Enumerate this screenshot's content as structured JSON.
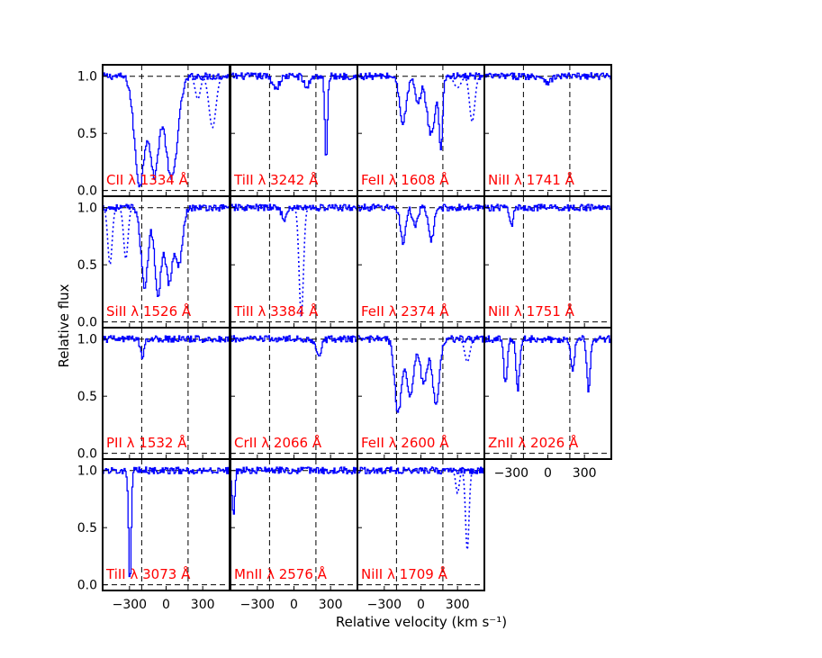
{
  "figure": {
    "ylabel": "Relative flux",
    "xlabel": "Relative velocity (km s⁻¹)"
  },
  "colors": {
    "spectrum": "#0000ff",
    "label": "#ff0000",
    "reference": "#000000"
  },
  "chart_data": {
    "type": "line",
    "xlabel": "Relative velocity (km s⁻¹)",
    "ylabel": "Relative flux",
    "xlim": [
      -520,
      520
    ],
    "ylim": [
      -0.05,
      1.1
    ],
    "xticks": [
      -300,
      0,
      300
    ],
    "yticks": [
      0.0,
      0.5,
      1.0
    ],
    "ytick_labels": [
      "0.0",
      "0.5",
      "1.0"
    ],
    "window": [
      -200,
      180
    ],
    "panels": [
      {
        "label": "CII λ 1334 Å",
        "row": 0,
        "col": 0,
        "min": 0.0,
        "features": [
          [
            -220,
            0.05,
            60
          ],
          [
            -100,
            0.15,
            50
          ],
          [
            40,
            0.1,
            70
          ]
        ],
        "blend": [
          [
            380,
            0.55,
            40
          ],
          [
            260,
            0.8,
            30
          ]
        ]
      },
      {
        "label": "TiII λ 3242 Å",
        "row": 0,
        "col": 1,
        "min": 0.0,
        "features": [
          [
            -150,
            0.9,
            40
          ],
          [
            260,
            0.25,
            15
          ],
          [
            100,
            0.9,
            30
          ]
        ],
        "blend": []
      },
      {
        "label": "FeII λ 1608 Å",
        "row": 0,
        "col": 2,
        "min": 0.0,
        "features": [
          [
            -150,
            0.6,
            40
          ],
          [
            -30,
            0.75,
            30
          ],
          [
            80,
            0.5,
            50
          ],
          [
            160,
            0.4,
            20
          ]
        ],
        "blend": [
          [
            300,
            0.9,
            40
          ],
          [
            420,
            0.6,
            30
          ]
        ]
      },
      {
        "label": "NiII λ 1741 Å",
        "row": 0,
        "col": 3,
        "min": 0.0,
        "features": [
          [
            0,
            0.95,
            40
          ]
        ],
        "blend": []
      },
      {
        "label": "SiII λ 1526 Å",
        "row": 1,
        "col": 0,
        "min": 0.0,
        "features": [
          [
            -180,
            0.3,
            40
          ],
          [
            -70,
            0.25,
            40
          ],
          [
            20,
            0.35,
            40
          ],
          [
            100,
            0.5,
            40
          ]
        ],
        "blend": [
          [
            -460,
            0.5,
            25
          ],
          [
            -330,
            0.55,
            25
          ]
        ]
      },
      {
        "label": "TiII λ 3384 Å",
        "row": 1,
        "col": 1,
        "min": 0.0,
        "features": [
          [
            -80,
            0.9,
            30
          ]
        ],
        "blend": [
          [
            60,
            0.05,
            25
          ]
        ]
      },
      {
        "label": "FeII λ 2374 Å",
        "row": 1,
        "col": 2,
        "min": 0.0,
        "features": [
          [
            -150,
            0.7,
            30
          ],
          [
            -50,
            0.85,
            30
          ],
          [
            80,
            0.7,
            30
          ]
        ],
        "blend": []
      },
      {
        "label": "NiII λ 1751 Å",
        "row": 1,
        "col": 3,
        "min": 0.0,
        "features": [
          [
            -300,
            0.85,
            20
          ]
        ],
        "blend": []
      },
      {
        "label": "PII λ 1532 Å",
        "row": 2,
        "col": 0,
        "min": 0.0,
        "features": [
          [
            -200,
            0.85,
            20
          ]
        ],
        "blend": []
      },
      {
        "label": "CrII λ 2066 Å",
        "row": 2,
        "col": 1,
        "min": 0.0,
        "features": [
          [
            200,
            0.85,
            30
          ]
        ],
        "blend": []
      },
      {
        "label": "FeII λ 2600 Å",
        "row": 2,
        "col": 2,
        "min": 0.0,
        "features": [
          [
            -190,
            0.35,
            40
          ],
          [
            -90,
            0.5,
            40
          ],
          [
            20,
            0.6,
            40
          ],
          [
            120,
            0.45,
            40
          ]
        ],
        "blend": [
          [
            380,
            0.8,
            30
          ]
        ]
      },
      {
        "label": "ZnII λ 2026 Å",
        "row": 2,
        "col": 3,
        "min": 0.0,
        "features": [
          [
            -350,
            0.6,
            20
          ],
          [
            -250,
            0.55,
            20
          ],
          [
            200,
            0.7,
            20
          ],
          [
            330,
            0.55,
            20
          ]
        ],
        "blend": []
      },
      {
        "label": "TiII λ 3073 Å",
        "row": 3,
        "col": 0,
        "min": 0.0,
        "features": [
          [
            -300,
            0.0,
            15
          ]
        ],
        "blend": []
      },
      {
        "label": "MnII λ 2576 Å",
        "row": 3,
        "col": 1,
        "min": 0.0,
        "features": [
          [
            -500,
            0.6,
            15
          ]
        ],
        "blend": []
      },
      {
        "label": "NiII λ 1709 Å",
        "row": 3,
        "col": 2,
        "min": 0.0,
        "features": [],
        "blend": [
          [
            380,
            0.3,
            20
          ],
          [
            300,
            0.8,
            20
          ]
        ]
      }
    ]
  }
}
